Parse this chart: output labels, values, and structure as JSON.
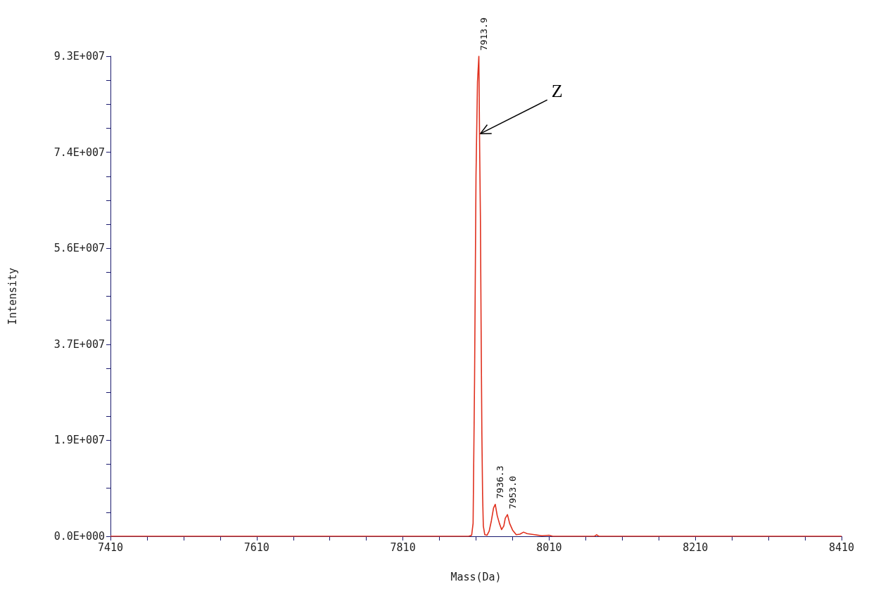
{
  "chart_data": {
    "type": "line",
    "xlabel": "Mass(Da)",
    "ylabel": "Intensity",
    "xlim": [
      7410,
      8410
    ],
    "xticks": [
      7410,
      {
        "value": 7460,
        "label": null
      },
      {
        "value": 7510,
        "label": null
      },
      {
        "value": 7560,
        "label": null
      },
      7610,
      {
        "value": 7660,
        "label": null
      },
      {
        "value": 7710,
        "label": null
      },
      {
        "value": 7760,
        "label": null
      },
      7810,
      {
        "value": 7860,
        "label": null
      },
      {
        "value": 7910,
        "label": null
      },
      {
        "value": 7960,
        "label": null
      },
      8010,
      {
        "value": 8060,
        "label": null
      },
      {
        "value": 8110,
        "label": null
      },
      {
        "value": 8160,
        "label": null
      },
      8210,
      {
        "value": 8260,
        "label": null
      },
      {
        "value": 8310,
        "label": null
      },
      {
        "value": 8360,
        "label": null
      },
      8410
    ],
    "ylim": [
      0,
      93000000
    ],
    "yticks": [
      {
        "value": 0,
        "label": "0.0E+000"
      },
      {
        "value": 4650000,
        "label": null
      },
      {
        "value": 9300000,
        "label": null
      },
      {
        "value": 13950000,
        "label": null
      },
      {
        "value": 18600000,
        "label": "1.9E+007"
      },
      {
        "value": 23250000,
        "label": null
      },
      {
        "value": 27900000,
        "label": null
      },
      {
        "value": 32550000,
        "label": null
      },
      {
        "value": 37200000,
        "label": "3.7E+007"
      },
      {
        "value": 41850000,
        "label": null
      },
      {
        "value": 46500000,
        "label": null
      },
      {
        "value": 51150000,
        "label": null
      },
      {
        "value": 55800000,
        "label": "5.6E+007"
      },
      {
        "value": 60450000,
        "label": null
      },
      {
        "value": 65100000,
        "label": null
      },
      {
        "value": 69750000,
        "label": null
      },
      {
        "value": 74400000,
        "label": "7.4E+007"
      },
      {
        "value": 79050000,
        "label": null
      },
      {
        "value": 83700000,
        "label": null
      },
      {
        "value": 88350000,
        "label": null
      },
      {
        "value": 93000000,
        "label": "9.3E+007"
      }
    ],
    "grid": false,
    "legend": false,
    "marker": "none",
    "line_style": "solid",
    "annotations": [
      {
        "text": "Z",
        "x": 7916,
        "y": 78000000
      },
      {
        "text": "7913.9",
        "x": 7913.9,
        "y": 93000000
      },
      {
        "text": "7936.3",
        "x": 7936.3,
        "y": 6200000
      },
      {
        "text": "7953.0",
        "x": 7953,
        "y": 4200000
      }
    ],
    "series": [
      {
        "color": "#e0301e",
        "x": [
          7410,
          7900,
          7904,
          7906,
          7908,
          7910,
          7912,
          7913.9,
          7915,
          7916,
          7917,
          7918,
          7919,
          7920,
          7922,
          7925,
          7928,
          7931,
          7934,
          7936.3,
          7939,
          7942,
          7945,
          7948,
          7950,
          7953,
          7956,
          7960,
          7965,
          7970,
          7975,
          7980,
          7990,
          8000,
          8010,
          8015,
          8072,
          8075,
          8078,
          8410
        ],
        "values": [
          0,
          0,
          200000,
          2500000,
          30000000,
          70000000,
          88000000,
          93000000,
          75000000,
          62000000,
          40000000,
          20000000,
          8000000,
          2000000,
          300000,
          200000,
          1000000,
          3000000,
          5500000,
          6200000,
          4000000,
          2500000,
          1300000,
          2000000,
          3500000,
          4200000,
          2500000,
          1200000,
          300000,
          400000,
          800000,
          500000,
          300000,
          100000,
          200000,
          0,
          0,
          300000,
          0,
          0
        ]
      }
    ]
  }
}
